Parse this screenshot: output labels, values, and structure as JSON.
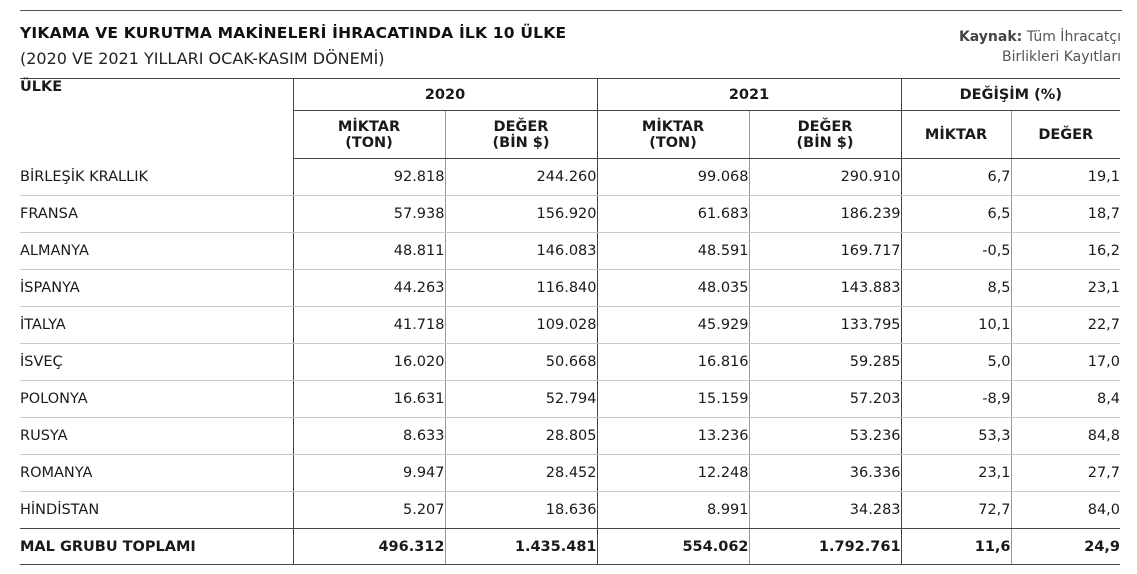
{
  "header": {
    "title": "YIKAMA VE KURUTMA MAKİNELERİ İHRACATINDA İLK 10 ÜLKE",
    "subtitle": "(2020 VE 2021 YILLARI OCAK-KASIM DÖNEMİ)",
    "source_label": "Kaynak:",
    "source_line1": "Tüm İhracatçı",
    "source_line2": "Birlikleri Kayıtları"
  },
  "table": {
    "col_country": "ÜLKE",
    "group_2020": "2020",
    "group_2021": "2021",
    "group_change": "DEĞİŞİM (%)",
    "sub_miktar_l1": "MİKTAR",
    "sub_miktar_l2": "(TON)",
    "sub_deger_l1": "DEĞER",
    "sub_deger_l2": "(BİN $)",
    "sub_change_miktar": "MİKTAR",
    "sub_change_deger": "DEĞER",
    "rows": [
      {
        "country": "BİRLEŞİK KRALLIK",
        "m2020": "92.818",
        "d2020": "244.260",
        "m2021": "99.068",
        "d2021": "290.910",
        "cm": "6,7",
        "cd": "19,1"
      },
      {
        "country": "FRANSA",
        "m2020": "57.938",
        "d2020": "156.920",
        "m2021": "61.683",
        "d2021": "186.239",
        "cm": "6,5",
        "cd": "18,7"
      },
      {
        "country": "ALMANYA",
        "m2020": "48.811",
        "d2020": "146.083",
        "m2021": "48.591",
        "d2021": "169.717",
        "cm": "-0,5",
        "cd": "16,2"
      },
      {
        "country": "İSPANYA",
        "m2020": "44.263",
        "d2020": "116.840",
        "m2021": "48.035",
        "d2021": "143.883",
        "cm": "8,5",
        "cd": "23,1"
      },
      {
        "country": "İTALYA",
        "m2020": "41.718",
        "d2020": "109.028",
        "m2021": "45.929",
        "d2021": "133.795",
        "cm": "10,1",
        "cd": "22,7"
      },
      {
        "country": "İSVEÇ",
        "m2020": "16.020",
        "d2020": "50.668",
        "m2021": "16.816",
        "d2021": "59.285",
        "cm": "5,0",
        "cd": "17,0"
      },
      {
        "country": "POLONYA",
        "m2020": "16.631",
        "d2020": "52.794",
        "m2021": "15.159",
        "d2021": "57.203",
        "cm": "-8,9",
        "cd": "8,4"
      },
      {
        "country": "RUSYA",
        "m2020": "8.633",
        "d2020": "28.805",
        "m2021": "13.236",
        "d2021": "53.236",
        "cm": "53,3",
        "cd": "84,8"
      },
      {
        "country": "ROMANYA",
        "m2020": "9.947",
        "d2020": "28.452",
        "m2021": "12.248",
        "d2021": "36.336",
        "cm": "23,1",
        "cd": "27,7"
      },
      {
        "country": "HİNDİSTAN",
        "m2020": "5.207",
        "d2020": "18.636",
        "m2021": "8.991",
        "d2021": "34.283",
        "cm": "72,7",
        "cd": "84,0"
      }
    ],
    "total": {
      "country": "MAL GRUBU TOPLAMI",
      "m2020": "496.312",
      "d2020": "1.435.481",
      "m2021": "554.062",
      "d2021": "1.792.761",
      "cm": "11,6",
      "cd": "24,9"
    }
  }
}
